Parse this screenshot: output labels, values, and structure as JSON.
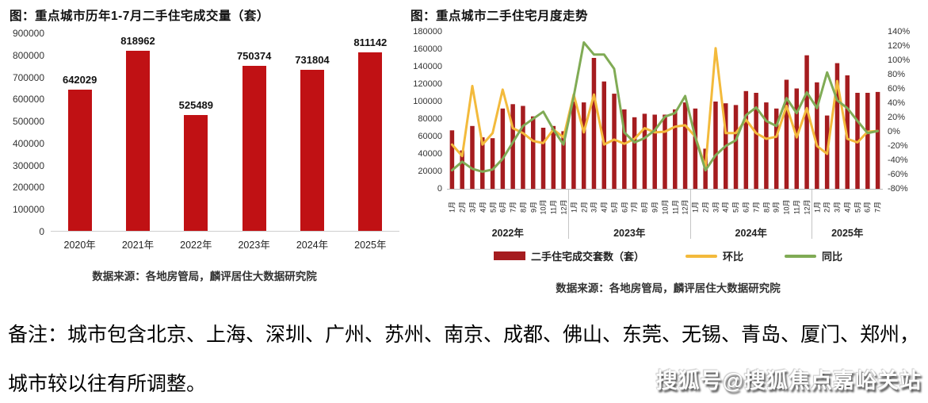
{
  "note": {
    "line1": "备注：城市包含北京、上海、深圳、广州、苏州、南京、成都、佛山、东莞、无锡、青岛、厦门、郑州，",
    "line2": "城市较以往有所调整。"
  },
  "watermark": "搜狐号@搜狐焦点嘉峪关站",
  "chart_data": [
    {
      "type": "bar",
      "title": "图：重点城市历年1-7月二手住宅成交量（套）",
      "categories": [
        "2020年",
        "2021年",
        "2022年",
        "2023年",
        "2024年",
        "2025年"
      ],
      "values": [
        642029,
        818962,
        525489,
        750374,
        731804,
        811142
      ],
      "data_labels": [
        642029,
        818962,
        525489,
        750374,
        731804,
        811142
      ],
      "ylabel": "",
      "xlabel": "",
      "ylim": [
        0,
        900000
      ],
      "ytick_step": 100000,
      "grid": false,
      "bar_color": "#c01114",
      "source": "数据来源：各地房管局，麟评居住大数据研究院"
    },
    {
      "type": "combo (bar + 2 lines)",
      "title": "图：重点城市二手住宅月度走势",
      "categories": [
        "1月",
        "2月",
        "3月",
        "4月",
        "5月",
        "6月",
        "7月",
        "8月",
        "9月",
        "10月",
        "11月",
        "12月",
        "1月",
        "2月",
        "3月",
        "4月",
        "5月",
        "6月",
        "7月",
        "8月",
        "9月",
        "10月",
        "11月",
        "12月",
        "1月",
        "2月",
        "3月",
        "4月",
        "5月",
        "6月",
        "7月",
        "8月",
        "9月",
        "10月",
        "11月",
        "12月",
        "1月",
        "2月",
        "3月",
        "4月",
        "5月",
        "6月",
        "7月"
      ],
      "year_groups": [
        {
          "label": "2022年",
          "count": 12
        },
        {
          "label": "2023年",
          "count": 12
        },
        {
          "label": "2024年",
          "count": 12
        },
        {
          "label": "2025年",
          "count": 7
        }
      ],
      "left_axis": {
        "min": 0,
        "max": 180000,
        "step": 20000
      },
      "right_axis": {
        "min": -80,
        "max": 140,
        "step": 20,
        "unit": "%"
      },
      "grid": false,
      "legend_position": "bottom",
      "values_note": "monthly values estimated from pixels/gridlines",
      "series": [
        {
          "name": "二手住宅成交套数（套）",
          "type": "bar",
          "axis": "left",
          "color": "#a51c1f",
          "values": [
            67000,
            44000,
            72000,
            59000,
            58000,
            92000,
            97000,
            95000,
            83000,
            70000,
            72000,
            66000,
            100000,
            99000,
            150000,
            123000,
            109000,
            91000,
            82000,
            86000,
            85000,
            85000,
            91000,
            99000,
            92000,
            46000,
            100000,
            98000,
            96000,
            112000,
            110000,
            99000,
            92000,
            125000,
            115000,
            153000,
            122000,
            84000,
            144000,
            130000,
            110000,
            110000,
            111000
          ]
        },
        {
          "name": "环比",
          "type": "line",
          "axis": "right",
          "color": "#f3ba3c",
          "values": [
            -18,
            -34,
            64,
            -18,
            -2,
            59,
            5,
            -2,
            -13,
            -16,
            3,
            -8,
            52,
            -1,
            52,
            -18,
            -11,
            -17,
            -10,
            5,
            -1,
            0,
            7,
            9,
            -7,
            -50,
            117,
            -2,
            -2,
            17,
            -2,
            -10,
            -7,
            36,
            -8,
            33,
            -20,
            -31,
            71,
            -10,
            -15,
            0,
            1
          ]
        },
        {
          "name": "同比",
          "type": "line",
          "axis": "right",
          "color": "#80ab55",
          "values": [
            -54,
            -42,
            -52,
            -56,
            -53,
            -38,
            -15,
            8,
            18,
            28,
            3,
            -18,
            49,
            125,
            108,
            108,
            88,
            -1,
            -15,
            -9,
            2,
            21,
            26,
            50,
            -8,
            -54,
            -33,
            -20,
            -12,
            23,
            34,
            15,
            8,
            47,
            26,
            55,
            33,
            83,
            44,
            33,
            15,
            -2,
            1
          ]
        }
      ],
      "source": "数据来源：各地房管局，麟评居住大数据研究院"
    }
  ]
}
